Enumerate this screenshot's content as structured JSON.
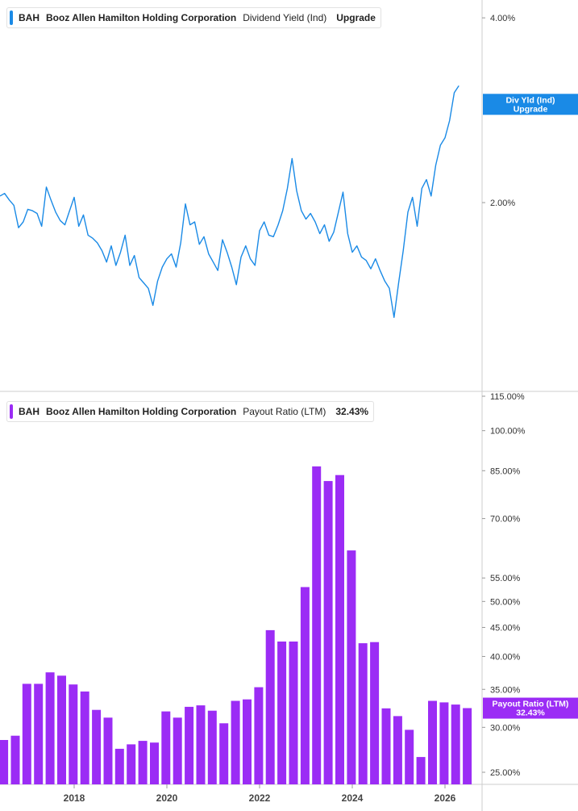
{
  "colors": {
    "yield": "#1a8ae6",
    "payout": "#9b2cf5",
    "axis": "#cccccc"
  },
  "legend_top": {
    "ticker": "BAH",
    "company": "Booz Allen Hamilton Holding Corporation",
    "metric": "Dividend Yield (Ind)",
    "value": "Upgrade"
  },
  "legend_bottom": {
    "ticker": "BAH",
    "company": "Booz Allen Hamilton Holding Corporation",
    "metric": "Payout Ratio (LTM)",
    "value": "32.43%"
  },
  "chart_data": [
    {
      "type": "line",
      "series": [
        {
          "name": "Dividend Yield (Ind)"
        }
      ],
      "log_scale": true,
      "y_ticks": [
        {
          "label": "4.00%",
          "value": 4.0
        },
        {
          "label": "2.00%",
          "value": 2.0
        }
      ],
      "ylim": [
        1.0,
        4.2
      ],
      "x_ticks": [
        "2018",
        "2020",
        "2022",
        "2024",
        "2026"
      ],
      "xlim": [
        2016.4,
        2026.8
      ],
      "tag": [
        "Div Yld (Ind)",
        "Upgrade"
      ],
      "x": [
        2016.4,
        2016.5,
        2016.6,
        2016.7,
        2016.8,
        2016.9,
        2017.0,
        2017.1,
        2017.2,
        2017.3,
        2017.4,
        2017.5,
        2017.6,
        2017.7,
        2017.8,
        2017.9,
        2018.0,
        2018.1,
        2018.2,
        2018.3,
        2018.4,
        2018.5,
        2018.6,
        2018.7,
        2018.8,
        2018.9,
        2019.0,
        2019.1,
        2019.2,
        2019.3,
        2019.4,
        2019.5,
        2019.6,
        2019.7,
        2019.8,
        2019.9,
        2020.0,
        2020.1,
        2020.2,
        2020.3,
        2020.4,
        2020.5,
        2020.6,
        2020.7,
        2020.8,
        2020.9,
        2021.0,
        2021.1,
        2021.2,
        2021.3,
        2021.4,
        2021.5,
        2021.6,
        2021.7,
        2021.8,
        2021.9,
        2022.0,
        2022.1,
        2022.2,
        2022.3,
        2022.4,
        2022.5,
        2022.6,
        2022.7,
        2022.8,
        2022.9,
        2023.0,
        2023.1,
        2023.2,
        2023.3,
        2023.4,
        2023.5,
        2023.6,
        2023.7,
        2023.8,
        2023.9,
        2024.0,
        2024.1,
        2024.2,
        2024.3,
        2024.4,
        2024.5,
        2024.6,
        2024.7,
        2024.8,
        2024.9,
        2025.0,
        2025.1,
        2025.2,
        2025.3,
        2025.4,
        2025.5,
        2025.6,
        2025.7,
        2025.8,
        2025.9,
        2026.0,
        2026.1,
        2026.2,
        2026.3
      ],
      "y": [
        2.05,
        2.07,
        2.02,
        1.98,
        1.82,
        1.86,
        1.95,
        1.94,
        1.92,
        1.83,
        2.12,
        2.02,
        1.93,
        1.87,
        1.84,
        1.94,
        2.04,
        1.83,
        1.91,
        1.77,
        1.75,
        1.72,
        1.67,
        1.6,
        1.7,
        1.58,
        1.66,
        1.77,
        1.58,
        1.64,
        1.51,
        1.48,
        1.45,
        1.36,
        1.49,
        1.57,
        1.62,
        1.65,
        1.57,
        1.72,
        1.99,
        1.84,
        1.86,
        1.71,
        1.76,
        1.65,
        1.6,
        1.55,
        1.74,
        1.66,
        1.57,
        1.47,
        1.63,
        1.7,
        1.62,
        1.58,
        1.8,
        1.86,
        1.77,
        1.76,
        1.84,
        1.94,
        2.11,
        2.36,
        2.09,
        1.94,
        1.88,
        1.92,
        1.86,
        1.78,
        1.84,
        1.73,
        1.79,
        1.93,
        2.08,
        1.78,
        1.66,
        1.7,
        1.63,
        1.61,
        1.56,
        1.62,
        1.55,
        1.49,
        1.45,
        1.3,
        1.48,
        1.67,
        1.93,
        2.04,
        1.83,
        2.11,
        2.18,
        2.05,
        2.3,
        2.48,
        2.55,
        2.72,
        3.02,
        3.1
      ]
    },
    {
      "type": "bar",
      "series": [
        {
          "name": "Payout Ratio (LTM)"
        }
      ],
      "log_scale": true,
      "y_ticks": [
        {
          "label": "115.00%",
          "value": 115
        },
        {
          "label": "100.00%",
          "value": 100
        },
        {
          "label": "85.00%",
          "value": 85
        },
        {
          "label": "70.00%",
          "value": 70
        },
        {
          "label": "55.00%",
          "value": 55
        },
        {
          "label": "50.00%",
          "value": 50
        },
        {
          "label": "45.00%",
          "value": 45
        },
        {
          "label": "40.00%",
          "value": 40
        },
        {
          "label": "35.00%",
          "value": 35
        },
        {
          "label": "30.00%",
          "value": 30
        },
        {
          "label": "25.00%",
          "value": 25
        }
      ],
      "x_ticks": [
        "2018",
        "2020",
        "2022",
        "2024",
        "2026"
      ],
      "xlim": [
        2016.4,
        2026.8
      ],
      "tag": [
        "Payout Ratio (LTM)",
        "32.43%"
      ],
      "x": [
        2016.48,
        2016.73,
        2016.98,
        2017.23,
        2017.48,
        2017.73,
        2017.98,
        2018.23,
        2018.48,
        2018.73,
        2018.98,
        2019.23,
        2019.48,
        2019.73,
        2019.98,
        2020.23,
        2020.48,
        2020.73,
        2020.98,
        2021.23,
        2021.48,
        2021.73,
        2021.98,
        2022.23,
        2022.48,
        2022.73,
        2022.98,
        2023.23,
        2023.48,
        2023.73,
        2023.98,
        2024.23,
        2024.48,
        2024.73,
        2024.98,
        2025.23,
        2025.48,
        2025.73,
        2025.98,
        2026.23,
        2026.48
      ],
      "values": [
        28.5,
        29.0,
        35.8,
        35.8,
        37.5,
        37.0,
        35.7,
        34.7,
        32.2,
        31.2,
        27.5,
        28.0,
        28.4,
        28.2,
        32.0,
        31.2,
        32.6,
        32.8,
        32.1,
        30.5,
        33.4,
        33.6,
        35.3,
        44.5,
        42.5,
        42.5,
        53.0,
        86.5,
        81.5,
        83.5,
        61.5,
        42.2,
        42.4,
        32.4,
        31.4,
        29.7,
        26.6,
        33.4,
        33.2,
        32.9,
        32.43
      ]
    }
  ]
}
